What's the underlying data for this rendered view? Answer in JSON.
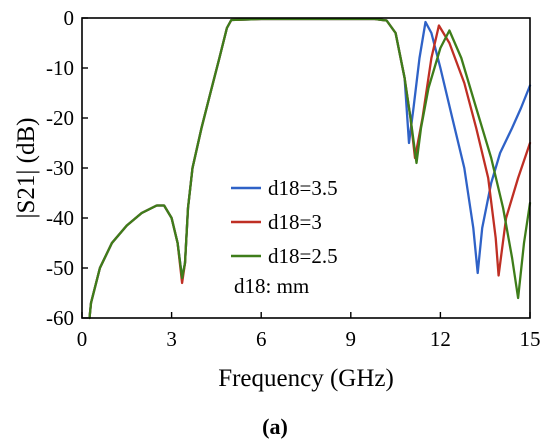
{
  "chart_data": {
    "type": "line",
    "xlabel": "Frequency (GHz)",
    "ylabel": "|S21| (dB)",
    "xlim": [
      0,
      15
    ],
    "ylim": [
      -60,
      0
    ],
    "xticks": [
      0,
      3,
      6,
      9,
      12,
      15
    ],
    "yticks": [
      0,
      -10,
      -20,
      -30,
      -40,
      -50,
      -60
    ],
    "grid": false,
    "legend_position": "center-right",
    "legend_note": "d18: mm",
    "caption": "(a)",
    "series": [
      {
        "name": "d18=3.5",
        "color": "#2f62c7",
        "x": [
          0.25,
          0.3,
          0.6,
          1.0,
          1.5,
          2.0,
          2.5,
          2.75,
          3.0,
          3.2,
          3.35,
          3.45,
          3.55,
          3.7,
          4.0,
          4.3,
          4.6,
          4.85,
          5.0,
          6.0,
          7.0,
          8.0,
          9.0,
          9.8,
          10.2,
          10.5,
          10.8,
          10.95,
          11.1,
          11.3,
          11.5,
          11.7,
          12.0,
          12.4,
          12.8,
          13.1,
          13.25,
          13.4,
          13.7,
          14.0,
          14.4,
          14.7,
          15.0
        ],
        "y": [
          -60,
          -57,
          -50,
          -45,
          -41.5,
          -39,
          -37.5,
          -37.5,
          -40,
          -45,
          -52,
          -49,
          -38,
          -30,
          -22,
          -15,
          -8,
          -2,
          -0.4,
          -0.2,
          -0.2,
          -0.2,
          -0.2,
          -0.2,
          -0.5,
          -3,
          -12,
          -25,
          -18,
          -8,
          -0.8,
          -3,
          -10,
          -20,
          -30,
          -42,
          -51,
          -42,
          -33,
          -27,
          -22,
          -18,
          -13.5
        ]
      },
      {
        "name": "d18=3",
        "color": "#bf2f24",
        "x": [
          0.25,
          0.3,
          0.6,
          1.0,
          1.5,
          2.0,
          2.5,
          2.75,
          3.0,
          3.2,
          3.35,
          3.45,
          3.55,
          3.7,
          4.0,
          4.3,
          4.6,
          4.85,
          5.0,
          6.0,
          7.0,
          8.0,
          9.0,
          9.8,
          10.2,
          10.5,
          10.8,
          11.0,
          11.15,
          11.4,
          11.7,
          11.95,
          12.3,
          12.8,
          13.2,
          13.6,
          13.85,
          13.95,
          14.2,
          14.6,
          15.0
        ],
        "y": [
          -60,
          -57,
          -50,
          -45,
          -41.5,
          -39,
          -37.5,
          -37.5,
          -40,
          -45,
          -53,
          -49,
          -38,
          -30,
          -22,
          -15,
          -8,
          -2,
          -0.4,
          -0.2,
          -0.2,
          -0.2,
          -0.2,
          -0.2,
          -0.5,
          -3,
          -12,
          -20,
          -28,
          -20,
          -8,
          -1.5,
          -5,
          -13,
          -22,
          -32,
          -44,
          -51.5,
          -40,
          -32,
          -25
        ]
      },
      {
        "name": "d18=2.5",
        "color": "#3e7d1a",
        "x": [
          0.25,
          0.3,
          0.6,
          1.0,
          1.5,
          2.0,
          2.5,
          2.75,
          3.0,
          3.2,
          3.35,
          3.45,
          3.55,
          3.7,
          4.0,
          4.3,
          4.6,
          4.85,
          5.0,
          6.0,
          7.0,
          8.0,
          9.0,
          9.8,
          10.2,
          10.5,
          10.8,
          11.0,
          11.2,
          11.35,
          11.6,
          12.0,
          12.3,
          12.7,
          13.2,
          13.7,
          14.1,
          14.4,
          14.6,
          14.8,
          15.0
        ],
        "y": [
          -60,
          -57,
          -50,
          -45,
          -41.5,
          -39,
          -37.5,
          -37.5,
          -40,
          -45,
          -52,
          -49,
          -38,
          -30,
          -22,
          -15,
          -8,
          -2,
          -0.4,
          -0.2,
          -0.2,
          -0.2,
          -0.2,
          -0.2,
          -0.5,
          -3,
          -12,
          -20,
          -29,
          -22,
          -14,
          -6,
          -2.5,
          -8,
          -18,
          -28,
          -38,
          -48,
          -56,
          -45,
          -37
        ]
      }
    ]
  }
}
